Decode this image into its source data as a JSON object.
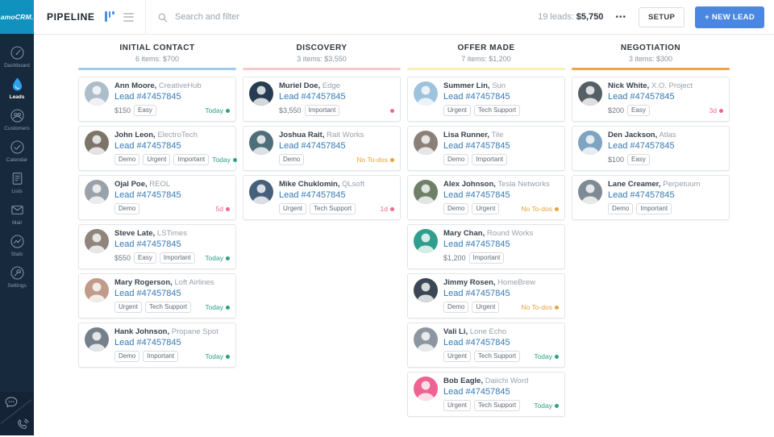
{
  "sidebar": {
    "logo": "amoCRM.",
    "items": [
      {
        "label": "Dashboard",
        "icon": "gauge",
        "active": false
      },
      {
        "label": "Leads",
        "icon": "leads",
        "active": true
      },
      {
        "label": "Customers",
        "icon": "customers",
        "active": false
      },
      {
        "label": "Calendar",
        "icon": "calendar",
        "active": false
      },
      {
        "label": "Lists",
        "icon": "lists",
        "active": false
      },
      {
        "label": "Mail",
        "icon": "mail",
        "active": false
      },
      {
        "label": "Stats",
        "icon": "stats",
        "active": false
      },
      {
        "label": "Settings",
        "icon": "settings",
        "active": false
      }
    ],
    "bottom_icons": [
      {
        "name": "chat",
        "icon": "chat"
      },
      {
        "name": "phone",
        "icon": "phone"
      }
    ]
  },
  "topbar": {
    "title": "PIPELINE",
    "search_placeholder": "Search and filter",
    "summary_label": "19 leads:",
    "summary_value": "$5,750",
    "more_label": "•••",
    "setup_label": "SETUP",
    "new_lead_label": "+ NEW LEAD"
  },
  "colors": {
    "brand_logo_bg": "#1191be",
    "sidebar_bg": "#17293c",
    "new_lead_button": "#4a87e0",
    "lead_link": "#3579b5",
    "status_today": "#2aa187",
    "status_overdue": "#f0688c",
    "status_no_todos": "#e6a23c"
  },
  "board": {
    "columns": [
      {
        "title": "INITIAL CONTACT",
        "subtitle": "6 items: $700",
        "accent": "#a0cbf3",
        "cards": [
          {
            "name": "Ann Moore",
            "company": "CreativeHub",
            "lead": "Lead #47457845",
            "price": "$150",
            "tags": [
              "Easy"
            ],
            "status": "Today",
            "status_type": "today",
            "avatar": "#aebdca"
          },
          {
            "name": "John Leon",
            "company": "ElectroTech",
            "lead": "Lead #47457845",
            "price": "",
            "tags": [
              "Demo",
              "Urgent",
              "Important"
            ],
            "status": "Today",
            "status_type": "today",
            "avatar": "#7d7469"
          },
          {
            "name": "Ojal Poe",
            "company": "REOL",
            "lead": "Lead #47457845",
            "price": "",
            "tags": [
              "Demo"
            ],
            "status": "5d",
            "status_type": "overdue",
            "avatar": "#9aa1a8"
          },
          {
            "name": "Steve Late",
            "company": "LSTimes",
            "lead": "Lead #47457845",
            "price": "$550",
            "tags": [
              "Easy",
              "Important"
            ],
            "status": "Today",
            "status_type": "today",
            "avatar": "#8f857c"
          },
          {
            "name": "Mary Rogerson",
            "company": "Loft Airlines",
            "lead": "Lead #47457845",
            "price": "",
            "tags": [
              "Urgent",
              "Tech Support"
            ],
            "status": "Today",
            "status_type": "today",
            "avatar": "#c09b8a"
          },
          {
            "name": "Hank Johnson",
            "company": "Propane Spot",
            "lead": "Lead #47457845",
            "price": "",
            "tags": [
              "Demo",
              "Important"
            ],
            "status": "Today",
            "status_type": "today",
            "avatar": "#75808b"
          }
        ]
      },
      {
        "title": "DISCOVERY",
        "subtitle": "3 items: $3,550",
        "accent": "#f6c8cd",
        "cards": [
          {
            "name": "Muriel Doe",
            "company": "Edge",
            "lead": "Lead #47457845",
            "price": "$3,550",
            "tags": [
              "Important"
            ],
            "status": "",
            "status_type": "overdue",
            "avatar": "#273c52"
          },
          {
            "name": "Joshua Rait",
            "company": "Rait Works",
            "lead": "Lead #47457845",
            "price": "",
            "tags": [
              "Demo"
            ],
            "status": "No To-dos",
            "status_type": "todo",
            "avatar": "#4e6e79"
          },
          {
            "name": "Mike Chuklomin",
            "company": "QLsoft",
            "lead": "Lead #47457845",
            "price": "",
            "tags": [
              "Urgent",
              "Tech Support"
            ],
            "status": "1d",
            "status_type": "overdue",
            "avatar": "#45607c"
          }
        ]
      },
      {
        "title": "OFFER MADE",
        "subtitle": "7 items: $1,200",
        "accent": "#f9f0b8",
        "cards": [
          {
            "name": "Summer Lin",
            "company": "Sun",
            "lead": "Lead #47457845",
            "price": "",
            "tags": [
              "Urgent",
              "Tech Support"
            ],
            "status": "",
            "status_type": "",
            "avatar": "#9ec3dd"
          },
          {
            "name": "Lisa Runner",
            "company": "Tile",
            "lead": "Lead #47457845",
            "price": "",
            "tags": [
              "Demo",
              "Important"
            ],
            "status": "",
            "status_type": "",
            "avatar": "#8b8077"
          },
          {
            "name": "Alex Johnson",
            "company": "Tesla Networks",
            "lead": "Lead #47457845",
            "price": "",
            "tags": [
              "Demo",
              "Urgent"
            ],
            "status": "No To-dos",
            "status_type": "todo",
            "avatar": "#6f7f68"
          },
          {
            "name": "Mary Chan",
            "company": "Round Works",
            "lead": "Lead #47457845",
            "price": "$1,200",
            "tags": [
              "Important"
            ],
            "status": "",
            "status_type": "",
            "avatar": "#2f9e8d"
          },
          {
            "name": "Jimmy Rosen",
            "company": "HomeBrew",
            "lead": "Lead #47457845",
            "price": "",
            "tags": [
              "Demo",
              "Urgent"
            ],
            "status": "No To-dos",
            "status_type": "todo",
            "avatar": "#3a4754"
          },
          {
            "name": "Vali Li",
            "company": "Lone Echo",
            "lead": "Lead #47457845",
            "price": "",
            "tags": [
              "Urgent",
              "Tech Support"
            ],
            "status": "Today",
            "status_type": "today",
            "avatar": "#8d96a0"
          },
          {
            "name": "Bob Eagle",
            "company": "Daiichi Word",
            "lead": "Lead #47457845",
            "price": "",
            "tags": [
              "Urgent",
              "Tech Support"
            ],
            "status": "Today",
            "status_type": "today",
            "avatar": "#ef6292"
          }
        ]
      },
      {
        "title": "NEGOTIATION",
        "subtitle": "3 items: $300",
        "accent": "#efa44a",
        "cards": [
          {
            "name": "Nick White",
            "company": "X.O. Project",
            "lead": "Lead #47457845",
            "price": "$200",
            "tags": [
              "Easy"
            ],
            "status": "3d",
            "status_type": "overdue",
            "avatar": "#555f66"
          },
          {
            "name": "Den Jackson",
            "company": "Atlas",
            "lead": "Lead #47457845",
            "price": "$100",
            "tags": [
              "Easy"
            ],
            "status": "",
            "status_type": "",
            "avatar": "#7fa3c0"
          },
          {
            "name": "Lane Creamer",
            "company": "Perpetuum",
            "lead": "Lead #47457845",
            "price": "",
            "tags": [
              "Demo",
              "Important"
            ],
            "status": "",
            "status_type": "",
            "avatar": "#808a92"
          }
        ]
      }
    ]
  }
}
